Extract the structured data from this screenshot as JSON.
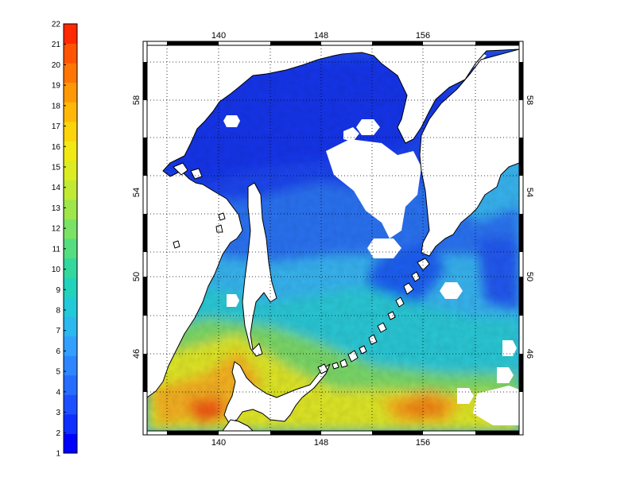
{
  "colorbar": {
    "min": 1,
    "max": 22,
    "labels": [
      "1",
      "2",
      "3",
      "4",
      "5",
      "6",
      "7",
      "8",
      "9",
      "10",
      "11",
      "12",
      "13",
      "14",
      "15",
      "16",
      "17",
      "18",
      "19",
      "20",
      "21",
      "22"
    ],
    "colors": [
      "#0000ff",
      "#0f2fff",
      "#1c4fff",
      "#256cff",
      "#2d86ff",
      "#33a0ff",
      "#2ab8ee",
      "#22c9d8",
      "#22d2bb",
      "#33d89e",
      "#55de80",
      "#7ae264",
      "#9ee64a",
      "#c0ea34",
      "#dcec22",
      "#f2e814",
      "#fcd40c",
      "#ffb808",
      "#ff9806",
      "#ff7604",
      "#ff5402",
      "#ff2a00"
    ]
  },
  "map": {
    "top_lon_labels": [
      "140",
      "148",
      "156"
    ],
    "bottom_lon_labels": [
      "140",
      "148",
      "156"
    ],
    "left_lat_labels": [
      "58",
      "54",
      "50",
      "46"
    ],
    "right_lat_labels": [
      "58",
      "54",
      "50",
      "46"
    ],
    "lon_range": [
      134.5,
      163.5
    ],
    "lat_range": [
      42.5,
      59.5
    ],
    "colors": {
      "deep_blue": "#1a3ff0",
      "blue": "#2f78f4",
      "cyan": "#39b0f0",
      "teal": "#2ac8dc",
      "green": "#8ee05a",
      "yellow": "#e6e61e",
      "orange": "#f4a015",
      "red": "#f05a10",
      "land": "#ffffff"
    }
  }
}
